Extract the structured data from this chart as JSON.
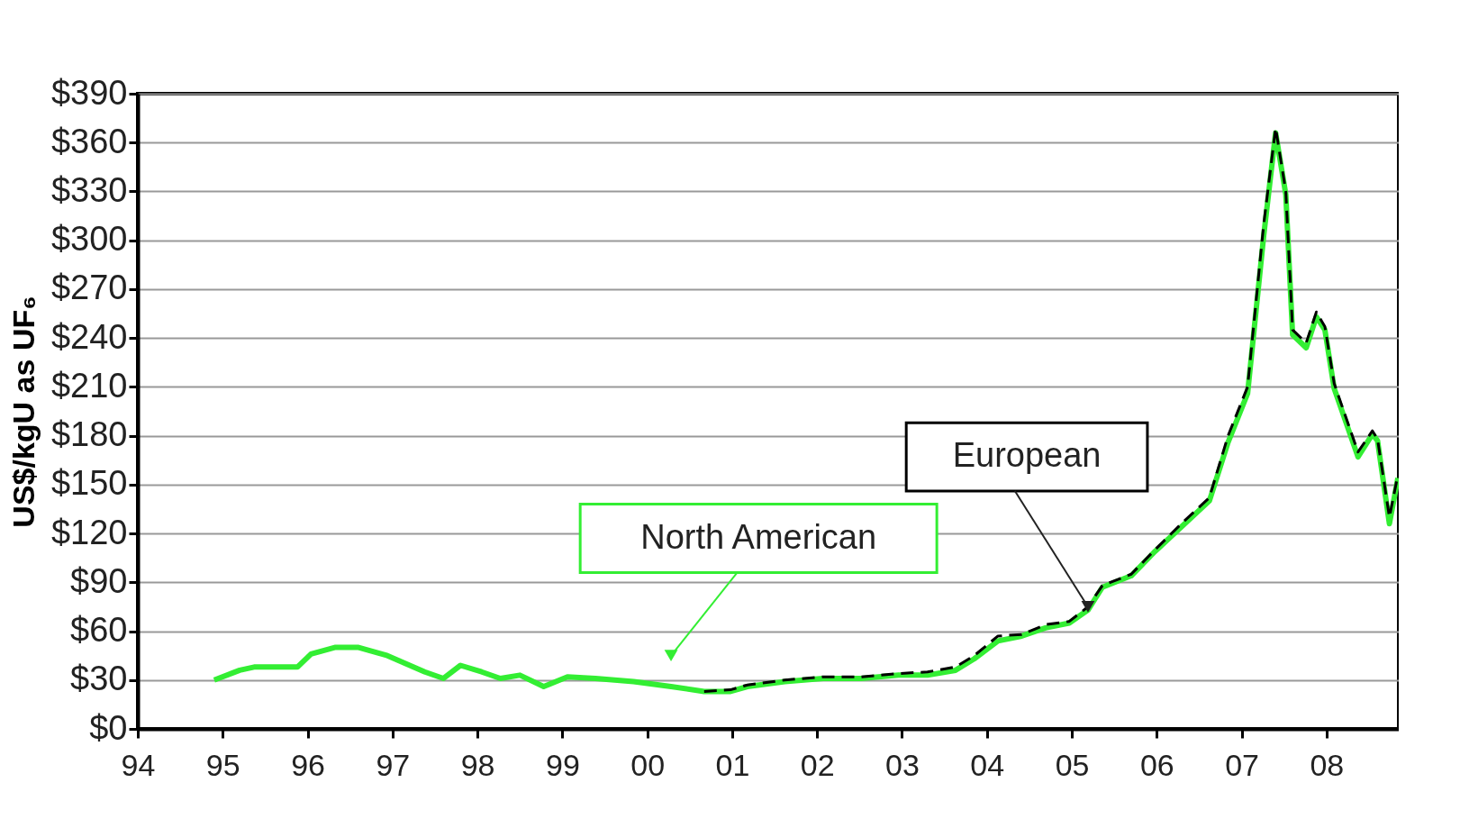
{
  "chart_data": {
    "type": "line",
    "ylabel": "US$/kgU as UF₆",
    "xlim": [
      1994,
      2008.85
    ],
    "ylim": [
      0,
      390
    ],
    "xticks": [
      {
        "value": 1994,
        "label": "94"
      },
      {
        "value": 1995,
        "label": "95"
      },
      {
        "value": 1996,
        "label": "96"
      },
      {
        "value": 1997,
        "label": "97"
      },
      {
        "value": 1998,
        "label": "98"
      },
      {
        "value": 1999,
        "label": "99"
      },
      {
        "value": 2000,
        "label": "00"
      },
      {
        "value": 2001,
        "label": "01"
      },
      {
        "value": 2002,
        "label": "02"
      },
      {
        "value": 2003,
        "label": "03"
      },
      {
        "value": 2004,
        "label": "04"
      },
      {
        "value": 2005,
        "label": "05"
      },
      {
        "value": 2006,
        "label": "06"
      },
      {
        "value": 2007,
        "label": "07"
      },
      {
        "value": 2008,
        "label": "08"
      }
    ],
    "yticks": [
      {
        "value": 0,
        "label": "$0"
      },
      {
        "value": 30,
        "label": "$30"
      },
      {
        "value": 60,
        "label": "$60"
      },
      {
        "value": 90,
        "label": "$90"
      },
      {
        "value": 120,
        "label": "$120"
      },
      {
        "value": 150,
        "label": "$150"
      },
      {
        "value": 180,
        "label": "$180"
      },
      {
        "value": 210,
        "label": "$210"
      },
      {
        "value": 240,
        "label": "$240"
      },
      {
        "value": 270,
        "label": "$270"
      },
      {
        "value": 300,
        "label": "$300"
      },
      {
        "value": 330,
        "label": "$330"
      },
      {
        "value": 360,
        "label": "$360"
      },
      {
        "value": 390,
        "label": "$390"
      }
    ],
    "grid": "y",
    "marker": "none",
    "series": [
      {
        "name": "North American",
        "color": "#33ee33",
        "line_style": "solid",
        "x": [
          1994.9,
          1995.2,
          1995.37,
          1995.88,
          1996.04,
          1996.32,
          1996.6,
          1996.94,
          1997.16,
          1997.38,
          1997.6,
          1997.8,
          1998.05,
          1998.27,
          1998.5,
          1998.78,
          1999.06,
          1999.39,
          1999.84,
          2000.28,
          2000.67,
          2000.98,
          2001.18,
          2001.62,
          2002.07,
          2002.52,
          2002.96,
          2003.3,
          2003.63,
          2003.85,
          2004.13,
          2004.41,
          2004.69,
          2004.97,
          2005.19,
          2005.36,
          2005.7,
          2005.98,
          2006.31,
          2006.62,
          2006.84,
          2007.07,
          2007.26,
          2007.4,
          2007.52,
          2007.6,
          2007.76,
          2007.88,
          2007.98,
          2008.09,
          2008.37,
          2008.54,
          2008.6,
          2008.74,
          2008.84
        ],
        "values": [
          30,
          36,
          38,
          38,
          46,
          50,
          50,
          45,
          40,
          35,
          31,
          39,
          35,
          31,
          33,
          26,
          32,
          31,
          29,
          26,
          23,
          23,
          26,
          29,
          31,
          31,
          33,
          33,
          36,
          43,
          54,
          57,
          62,
          65,
          73,
          87,
          94,
          109,
          125,
          140,
          176,
          206,
          303,
          366,
          328,
          242,
          234,
          253,
          245,
          209,
          167,
          181,
          177,
          126,
          154
        ]
      },
      {
        "name": "European",
        "color": "#000000",
        "line_style": "dashed",
        "x": [
          2000.67,
          2000.98,
          2001.18,
          2001.62,
          2002.07,
          2002.52,
          2002.96,
          2003.3,
          2003.63,
          2003.85,
          2004.13,
          2004.41,
          2004.69,
          2004.97,
          2005.19,
          2005.36,
          2005.7,
          2005.98,
          2006.31,
          2006.62,
          2006.84,
          2007.07,
          2007.26,
          2007.4,
          2007.52,
          2007.6,
          2007.76,
          2007.88,
          2007.98,
          2008.09,
          2008.37,
          2008.54,
          2008.6,
          2008.74,
          2008.84
        ],
        "values": [
          23,
          24,
          27,
          30,
          32,
          32,
          34,
          35,
          38,
          45,
          57,
          58,
          64,
          66,
          75,
          88,
          95,
          110,
          127,
          142,
          180,
          210,
          310,
          369,
          330,
          245,
          237,
          256,
          247,
          212,
          170,
          183,
          178,
          130,
          156
        ]
      }
    ]
  }
}
